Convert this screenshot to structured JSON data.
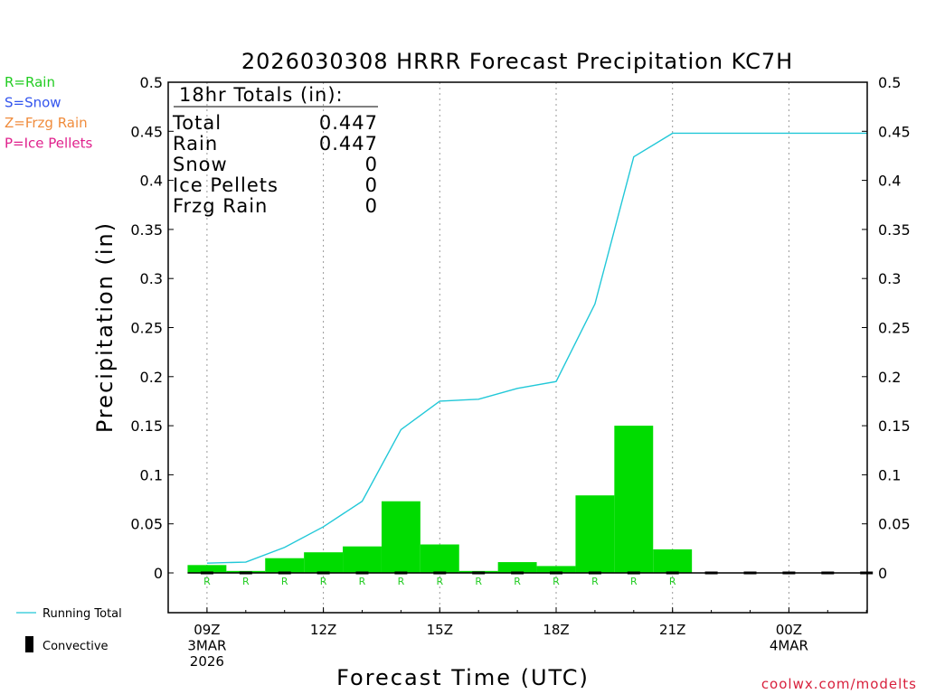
{
  "chart_data": {
    "type": "bar",
    "title": "2026030308 HRRR Forecast Precipitation KC7H",
    "xlabel": "Forecast Time (UTC)",
    "ylabel": "Precipitation (in)",
    "ylim": [
      0,
      0.5
    ],
    "y_ticks": [
      "0",
      "0.05",
      "0.1",
      "0.15",
      "0.2",
      "0.25",
      "0.3",
      "0.35",
      "0.4",
      "0.45",
      "0.5"
    ],
    "x_ticks": [
      {
        "hour": 9,
        "lines": [
          "09Z",
          "3MAR",
          "2026"
        ]
      },
      {
        "hour": 12,
        "lines": [
          "12Z"
        ]
      },
      {
        "hour": 15,
        "lines": [
          "15Z"
        ]
      },
      {
        "hour": 18,
        "lines": [
          "18Z"
        ]
      },
      {
        "hour": 21,
        "lines": [
          "21Z"
        ]
      },
      {
        "hour": 24,
        "lines": [
          "00Z",
          "4MAR"
        ]
      }
    ],
    "x_range_hours": [
      8.0,
      26.0
    ],
    "grid": "vertical dotted",
    "hours": [
      9,
      10,
      11,
      12,
      13,
      14,
      15,
      16,
      17,
      18,
      19,
      20,
      21,
      22,
      23,
      24,
      25,
      26
    ],
    "bars": [
      0.008,
      0.002,
      0.015,
      0.021,
      0.027,
      0.073,
      0.029,
      0.002,
      0.011,
      0.007,
      0.079,
      0.15,
      0.024,
      0,
      0,
      0,
      0,
      0
    ],
    "running_total": [
      0.01,
      0.011,
      0.026,
      0.047,
      0.073,
      0.146,
      0.175,
      0.177,
      0.188,
      0.195,
      0.274,
      0.424,
      0.448,
      0.448,
      0.448,
      0.448,
      0.448,
      0.448
    ],
    "ptype_markers": [
      "R",
      "R",
      "R",
      "R",
      "R",
      "R",
      "R",
      "R",
      "R",
      "R",
      "R",
      "R",
      "R"
    ],
    "legend_ptype": [
      {
        "text": "R=Rain",
        "color": "#22cc22"
      },
      {
        "text": "S=Snow",
        "color": "#3355ee"
      },
      {
        "text": "Z=Frzg Rain",
        "color": "#f08c3c"
      },
      {
        "text": "P=Ice Pellets",
        "color": "#e0208c"
      }
    ],
    "legend_lines": {
      "running_total": "Running Total",
      "convective": "Convective"
    },
    "totals_box": {
      "header": "18hr Totals (in):",
      "rows": [
        {
          "label": "Total",
          "value": "0.447"
        },
        {
          "label": "Rain",
          "value": "0.447"
        },
        {
          "label": "Snow",
          "value": "0"
        },
        {
          "label": "Ice Pellets",
          "value": "0"
        },
        {
          "label": "Frzg Rain",
          "value": "0"
        }
      ]
    },
    "colors": {
      "bar": "#00dc00",
      "running_total": "#22c8d8",
      "marker": "#22cc22",
      "credit": "#d8203c"
    }
  },
  "credit": "coolwx.com/modelts"
}
